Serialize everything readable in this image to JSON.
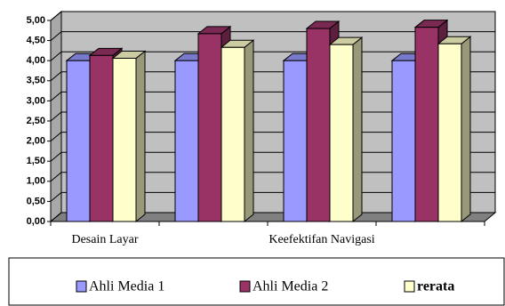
{
  "chart_data": {
    "type": "bar3d",
    "categories": [
      "Desain Layar",
      null,
      "Keefektifan Navigasi",
      null
    ],
    "series": [
      {
        "name": "Ahli Media 1",
        "color": "#9999ff",
        "values": [
          4.0,
          4.0,
          4.0,
          4.0
        ]
      },
      {
        "name": "Ahli Media 2",
        "color": "#993366",
        "values": [
          4.13,
          4.67,
          4.8,
          4.83
        ]
      },
      {
        "name": "rerata",
        "color": "#ffffcc",
        "values": [
          4.06,
          4.33,
          4.4,
          4.42
        ]
      }
    ],
    "ylim": [
      0,
      5
    ],
    "yticks": [
      {
        "value": 0,
        "label": "0,00"
      },
      {
        "value": 0.5,
        "label": "0,50"
      },
      {
        "value": 1,
        "label": "1,00"
      },
      {
        "value": 1.5,
        "label": "1,50"
      },
      {
        "value": 2,
        "label": "2,00"
      },
      {
        "value": 2.5,
        "label": "2,50"
      },
      {
        "value": 3,
        "label": "3,00"
      },
      {
        "value": 3.5,
        "label": "3,50"
      },
      {
        "value": 4,
        "label": "4,00"
      },
      {
        "value": 4.5,
        "label": "4,50"
      },
      {
        "value": 5,
        "label": "5,00"
      }
    ],
    "grid": true
  }
}
